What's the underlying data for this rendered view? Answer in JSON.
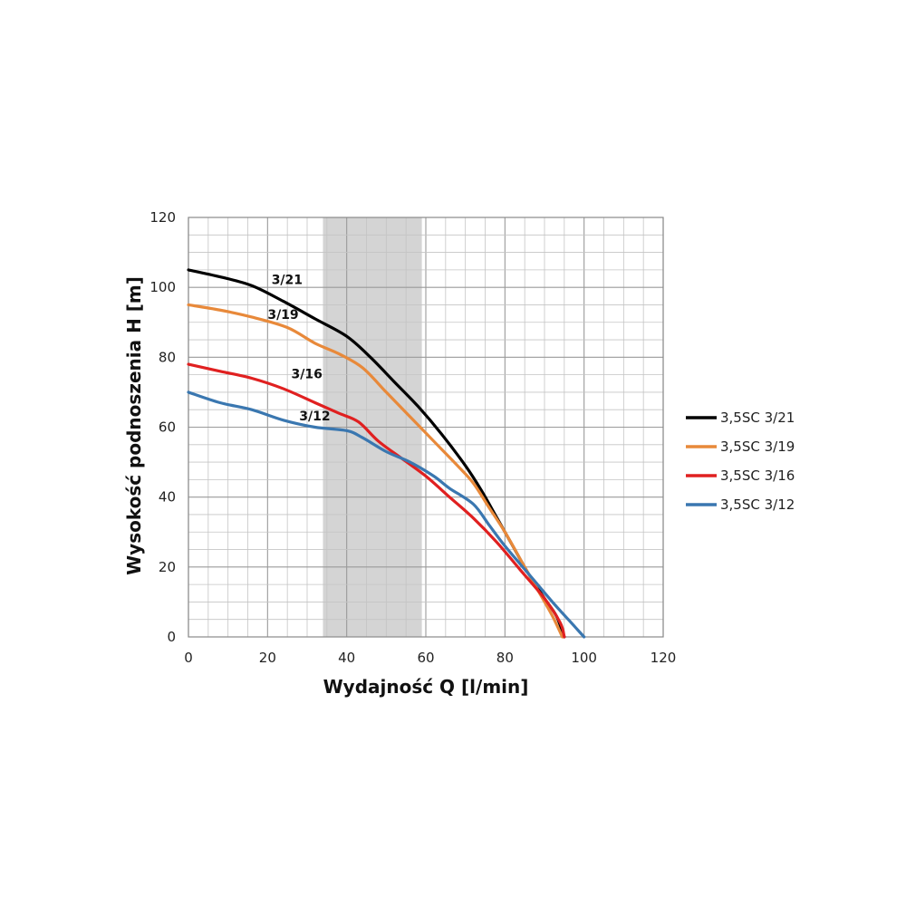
{
  "chart_data": {
    "type": "line",
    "xlabel": "Wydajność Q [l/min]",
    "ylabel": "Wysokość podnoszenia H [m]",
    "xlim": [
      0,
      120
    ],
    "ylim": [
      0,
      120
    ],
    "x_ticks": [
      "0",
      "20",
      "40",
      "60",
      "80",
      "100",
      "120"
    ],
    "y_ticks": [
      "0",
      "20",
      "40",
      "60",
      "80",
      "100",
      "120"
    ],
    "x_tick_values": [
      0,
      20,
      40,
      60,
      80,
      100,
      120
    ],
    "y_tick_values": [
      0,
      20,
      40,
      60,
      80,
      100,
      120
    ],
    "grid": true,
    "minor_grid_step": 5,
    "highlight_band": {
      "x_from": 34,
      "x_to": 59,
      "color": "#d4d4d4"
    },
    "legend": "right",
    "series": [
      {
        "name": "3,5SC 3/21",
        "label": "3/21",
        "label_at": [
          21,
          101
        ],
        "color": "#000000",
        "points": [
          [
            0,
            105
          ],
          [
            8,
            103
          ],
          [
            16,
            100.5
          ],
          [
            24,
            96
          ],
          [
            32,
            91
          ],
          [
            40,
            86
          ],
          [
            46,
            80
          ],
          [
            52,
            73
          ],
          [
            58,
            66
          ],
          [
            64,
            58
          ],
          [
            70,
            49
          ],
          [
            74,
            42
          ],
          [
            78,
            34
          ],
          [
            82,
            26
          ],
          [
            86,
            18
          ],
          [
            90,
            11
          ],
          [
            93,
            6
          ],
          [
            95,
            0
          ]
        ]
      },
      {
        "name": "3,5SC 3/19",
        "label": "3/19",
        "label_at": [
          20,
          91
        ],
        "color": "#e8893a",
        "points": [
          [
            0,
            95
          ],
          [
            8,
            93.5
          ],
          [
            16,
            91.5
          ],
          [
            25,
            88.5
          ],
          [
            32,
            84
          ],
          [
            38,
            81
          ],
          [
            44,
            77
          ],
          [
            50,
            70
          ],
          [
            56,
            63
          ],
          [
            62,
            56
          ],
          [
            68,
            49
          ],
          [
            72,
            44
          ],
          [
            76,
            37
          ],
          [
            80,
            30
          ],
          [
            84,
            22
          ],
          [
            88,
            14
          ],
          [
            92,
            6
          ],
          [
            94.5,
            0
          ]
        ]
      },
      {
        "name": "3,5SC 3/16",
        "label": "3/16",
        "label_at": [
          26,
          74
        ],
        "color": "#e02020",
        "points": [
          [
            0,
            78
          ],
          [
            8,
            76
          ],
          [
            16,
            74
          ],
          [
            24,
            71
          ],
          [
            32,
            67
          ],
          [
            38,
            64
          ],
          [
            43,
            61.5
          ],
          [
            48,
            56
          ],
          [
            54,
            51
          ],
          [
            60,
            46
          ],
          [
            66,
            40
          ],
          [
            72,
            34
          ],
          [
            78,
            27
          ],
          [
            84,
            19
          ],
          [
            90,
            11
          ],
          [
            94,
            4
          ],
          [
            95,
            0
          ]
        ]
      },
      {
        "name": "3,5SC 3/12",
        "label": "3/12",
        "label_at": [
          28,
          62
        ],
        "color": "#3a77b0",
        "points": [
          [
            0,
            70
          ],
          [
            8,
            67
          ],
          [
            16,
            65
          ],
          [
            24,
            62
          ],
          [
            32,
            60
          ],
          [
            40,
            59
          ],
          [
            44,
            57
          ],
          [
            50,
            53
          ],
          [
            56,
            50
          ],
          [
            62,
            46
          ],
          [
            66,
            42.5
          ],
          [
            72,
            38
          ],
          [
            76,
            32
          ],
          [
            80,
            26
          ],
          [
            86,
            18
          ],
          [
            92,
            10
          ],
          [
            96,
            5
          ],
          [
            100,
            0
          ]
        ]
      }
    ]
  }
}
